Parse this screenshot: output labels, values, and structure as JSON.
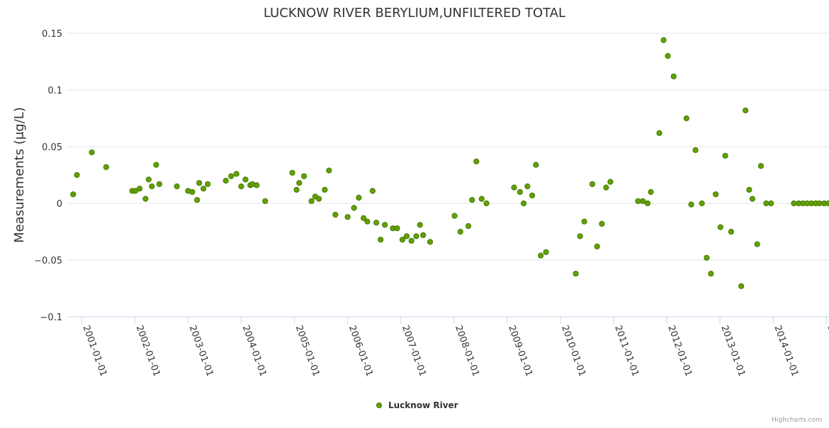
{
  "colors": {
    "series": "#66a000",
    "series_border": "#3d7a00",
    "grid": "#e6e6e6",
    "axis": "#ccd6eb",
    "text": "#333333",
    "credits": "#999999"
  },
  "credits": "Highcharts.com",
  "chart_data": {
    "type": "scatter",
    "title": "LUCKNOW RIVER BERYLIUM,UNFILTERED TOTAL",
    "xlabel": "",
    "ylabel": "Measurements (μg/L)",
    "ylim": [
      -0.1,
      0.15
    ],
    "yticks": [
      {
        "value": 0.15,
        "label": "0.15"
      },
      {
        "value": 0.1,
        "label": "0.1"
      },
      {
        "value": 0.05,
        "label": "0.05"
      },
      {
        "value": 0,
        "label": "0"
      },
      {
        "value": -0.05,
        "label": "−0.05"
      },
      {
        "value": -0.1,
        "label": "−0.1"
      }
    ],
    "xlim": [
      2000.73,
      2015.05
    ],
    "xticks": [
      {
        "value": 2001,
        "label": "2001-01-01"
      },
      {
        "value": 2002,
        "label": "2002-01-01"
      },
      {
        "value": 2003,
        "label": "2003-01-01"
      },
      {
        "value": 2004,
        "label": "2004-01-01"
      },
      {
        "value": 2005,
        "label": "2005-01-01"
      },
      {
        "value": 2006,
        "label": "2006-01-01"
      },
      {
        "value": 2007,
        "label": "2007-01-01"
      },
      {
        "value": 2008,
        "label": "2008-01-01"
      },
      {
        "value": 2009,
        "label": "2009-01-01"
      },
      {
        "value": 2010,
        "label": "2010-01-01"
      },
      {
        "value": 2011,
        "label": "2011-01-01"
      },
      {
        "value": 2012,
        "label": "2012-01-01"
      },
      {
        "value": 2013,
        "label": "2013-01-01"
      },
      {
        "value": 2014,
        "label": "2014-01-01"
      },
      {
        "value": 2015,
        "label": "2015-01-01"
      }
    ],
    "legend": "bottom-center",
    "series": [
      {
        "name": "Lucknow River",
        "x": [
          2000.84,
          2000.91,
          2001.19,
          2001.46,
          2001.95,
          2002.01,
          2002.09,
          2002.2,
          2002.26,
          2002.32,
          2002.4,
          2002.46,
          2002.79,
          2003.0,
          2003.08,
          2003.17,
          2003.21,
          2003.29,
          2003.37,
          2003.71,
          2003.81,
          2003.91,
          2004.0,
          2004.08,
          2004.17,
          2004.21,
          2004.29,
          2004.45,
          2004.96,
          2005.04,
          2005.09,
          2005.18,
          2005.32,
          2005.39,
          2005.46,
          2005.57,
          2005.65,
          2005.77,
          2006.0,
          2006.12,
          2006.21,
          2006.3,
          2006.37,
          2006.47,
          2006.54,
          2006.62,
          2006.7,
          2006.85,
          2006.93,
          2007.03,
          2007.11,
          2007.2,
          2007.29,
          2007.36,
          2007.42,
          2007.55,
          2008.01,
          2008.12,
          2008.27,
          2008.34,
          2008.42,
          2008.52,
          2008.61,
          2009.13,
          2009.24,
          2009.31,
          2009.38,
          2009.47,
          2009.54,
          2009.63,
          2009.73,
          2010.29,
          2010.37,
          2010.45,
          2010.6,
          2010.69,
          2010.78,
          2010.86,
          2010.94,
          2011.46,
          2011.55,
          2011.64,
          2011.7,
          2011.86,
          2011.94,
          2012.02,
          2012.13,
          2012.37,
          2012.46,
          2012.54,
          2012.66,
          2012.75,
          2012.83,
          2012.92,
          2013.01,
          2013.1,
          2013.21,
          2013.4,
          2013.48,
          2013.55,
          2013.61,
          2013.7,
          2013.77,
          2013.87,
          2013.96,
          2014.39,
          2014.48,
          2014.56,
          2014.64,
          2014.72,
          2014.8,
          2014.87,
          2014.96,
          2015.04
        ],
        "y": [
          0.008,
          0.025,
          0.045,
          0.032,
          0.011,
          0.011,
          0.013,
          0.004,
          0.021,
          0.015,
          0.034,
          0.017,
          0.015,
          0.011,
          0.01,
          0.003,
          0.018,
          0.013,
          0.017,
          0.02,
          0.024,
          0.026,
          0.015,
          0.021,
          0.016,
          0.017,
          0.016,
          0.002,
          0.027,
          0.012,
          0.018,
          0.024,
          0.002,
          0.006,
          0.004,
          0.012,
          0.029,
          -0.01,
          -0.012,
          -0.004,
          0.005,
          -0.013,
          -0.016,
          0.011,
          -0.017,
          -0.032,
          -0.019,
          -0.022,
          -0.022,
          -0.032,
          -0.029,
          -0.033,
          -0.029,
          -0.019,
          -0.028,
          -0.034,
          -0.011,
          -0.025,
          -0.02,
          0.003,
          0.037,
          0.004,
          0.0,
          0.014,
          0.01,
          0.0,
          0.015,
          0.007,
          0.034,
          -0.046,
          -0.043,
          -0.062,
          -0.029,
          -0.016,
          0.017,
          -0.038,
          -0.018,
          0.014,
          0.019,
          0.002,
          0.002,
          0.0,
          0.01,
          0.062,
          0.144,
          0.13,
          0.112,
          0.075,
          -0.001,
          0.047,
          0.0,
          -0.048,
          -0.062,
          0.008,
          -0.021,
          0.042,
          -0.025,
          -0.073,
          0.082,
          0.012,
          0.004,
          -0.036,
          0.033,
          0.0,
          0.0,
          0.0,
          0.0,
          0.0,
          0.0,
          0.0,
          0.0,
          0.0,
          0.0,
          0.0
        ]
      }
    ]
  }
}
